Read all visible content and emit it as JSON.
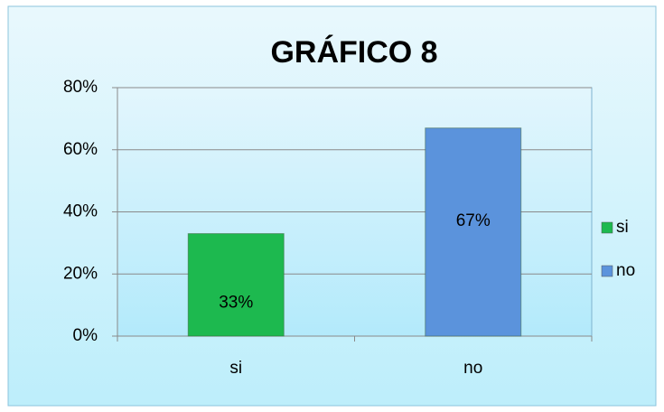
{
  "chart_data": {
    "type": "bar",
    "title": "GRÁFICO 8",
    "categories": [
      "si",
      "no"
    ],
    "values": [
      33,
      67
    ],
    "value_labels": [
      "33%",
      "67%"
    ],
    "colors": [
      "#1db94f",
      "#5b93dc"
    ],
    "ylim": [
      0,
      80
    ],
    "yticks": [
      {
        "value": 0,
        "label": "0%"
      },
      {
        "value": 20,
        "label": "20%"
      },
      {
        "value": 40,
        "label": "40%"
      },
      {
        "value": 60,
        "label": "60%"
      },
      {
        "value": 80,
        "label": "80%"
      }
    ],
    "grid": true,
    "legend": "right"
  }
}
